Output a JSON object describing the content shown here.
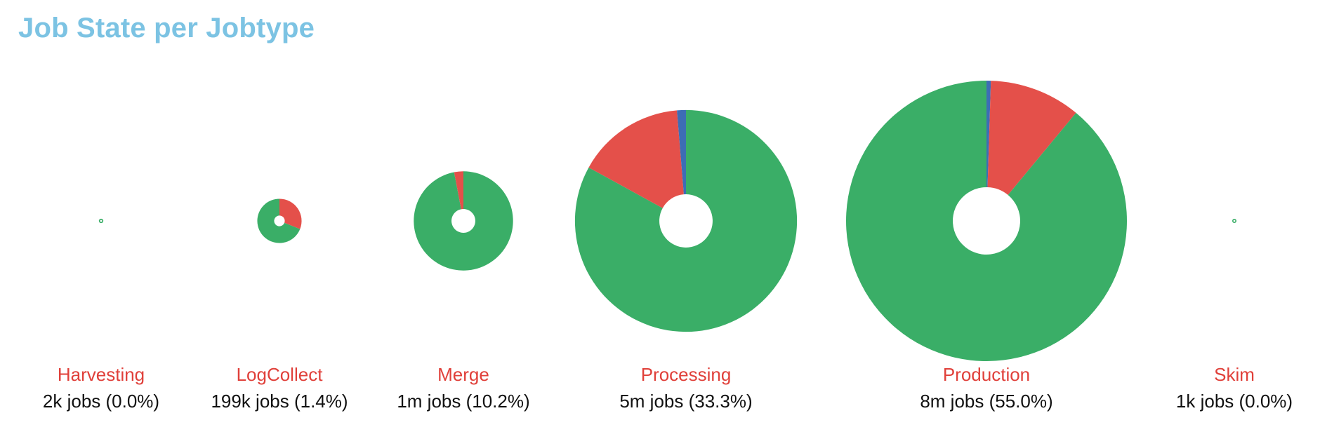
{
  "title": "Job State per Jobtype",
  "chart_data": {
    "type": "pie",
    "title": "Job State per Jobtype",
    "state_colors": {
      "success": "#3aae67",
      "failure": "#e4504a",
      "other": "#3d6db5"
    },
    "label_color": "#e0403a",
    "jobtypes": [
      {
        "name": "Harvesting",
        "count_label": "2k jobs (0.0%)",
        "jobs": 2000,
        "share_pct": 0.0,
        "slices": [
          {
            "state": "success",
            "fraction": 1.0
          }
        ]
      },
      {
        "name": "LogCollect",
        "count_label": "199k jobs (1.4%)",
        "jobs": 199000,
        "share_pct": 1.4,
        "slices": [
          {
            "state": "failure",
            "fraction": 0.31
          },
          {
            "state": "success",
            "fraction": 0.69
          }
        ]
      },
      {
        "name": "Merge",
        "count_label": "1m jobs (10.2%)",
        "jobs": 1000000,
        "share_pct": 10.2,
        "slices": [
          {
            "state": "success",
            "fraction": 0.97
          },
          {
            "state": "failure",
            "fraction": 0.03
          }
        ]
      },
      {
        "name": "Processing",
        "count_label": "5m jobs (33.3%)",
        "jobs": 5000000,
        "share_pct": 33.3,
        "slices": [
          {
            "state": "success",
            "fraction": 0.83
          },
          {
            "state": "failure",
            "fraction": 0.157
          },
          {
            "state": "other",
            "fraction": 0.013
          }
        ]
      },
      {
        "name": "Production",
        "count_label": "8m jobs (55.0%)",
        "jobs": 8000000,
        "share_pct": 55.0,
        "slices": [
          {
            "state": "other",
            "fraction": 0.005
          },
          {
            "state": "failure",
            "fraction": 0.105
          },
          {
            "state": "success",
            "fraction": 0.89
          }
        ]
      },
      {
        "name": "Skim",
        "count_label": "1k jobs (0.0%)",
        "jobs": 1000,
        "share_pct": 0.0,
        "slices": [
          {
            "state": "success",
            "fraction": 1.0
          }
        ]
      }
    ]
  }
}
